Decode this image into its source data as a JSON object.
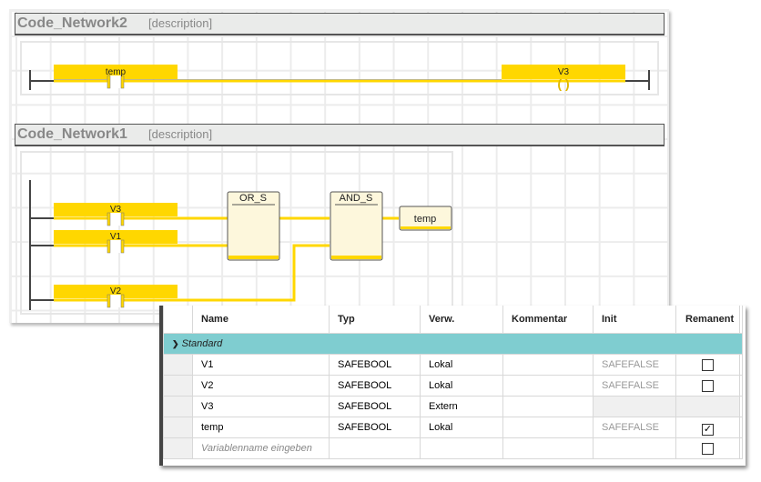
{
  "networks": [
    {
      "title": "Code_Network2",
      "description": "[description]",
      "contacts": [
        {
          "label": "temp"
        }
      ],
      "coil": {
        "label": "V3"
      }
    },
    {
      "title": "Code_Network1",
      "description": "[description]",
      "contacts": [
        {
          "label": "V3"
        },
        {
          "label": "V1"
        },
        {
          "label": "V2"
        }
      ],
      "blocks": [
        {
          "label": "OR_S"
        },
        {
          "label": "AND_S"
        }
      ],
      "output": {
        "label": "temp"
      }
    }
  ],
  "colors": {
    "wire": "#ffd700",
    "block_fill": "#fdf7dc",
    "group_row": "#7fcdd0"
  },
  "table": {
    "headers": [
      "Name",
      "Typ",
      "Verw.",
      "Kommentar",
      "Init",
      "Remanent"
    ],
    "group": "Standard",
    "rows": [
      {
        "name": "V1",
        "type": "SAFEBOOL",
        "usage": "Lokal",
        "comment": "",
        "init": "SAFEFALSE",
        "retain": false
      },
      {
        "name": "V2",
        "type": "SAFEBOOL",
        "usage": "Lokal",
        "comment": "",
        "init": "SAFEFALSE",
        "retain": false
      },
      {
        "name": "V3",
        "type": "SAFEBOOL",
        "usage": "Extern",
        "comment": "",
        "init": "",
        "retain": null
      },
      {
        "name": "temp",
        "type": "SAFEBOOL",
        "usage": "Lokal",
        "comment": "",
        "init": "SAFEFALSE",
        "retain": true
      }
    ],
    "new_row_placeholder": "Variablenname eingeben"
  }
}
